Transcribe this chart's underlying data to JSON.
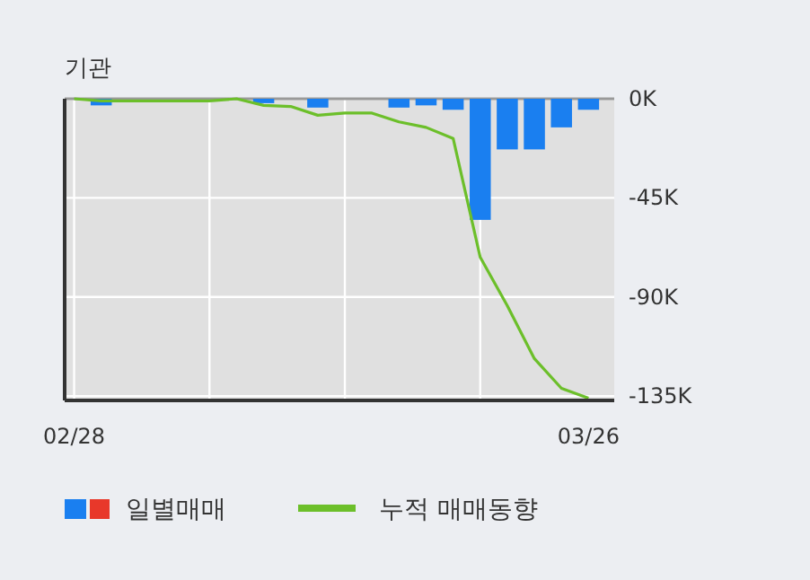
{
  "chart_data": {
    "type": "bar",
    "title": "기관",
    "categories": [
      "02/28",
      null,
      null,
      null,
      null,
      null,
      null,
      null,
      null,
      null,
      null,
      null,
      null,
      null,
      null,
      null,
      null,
      null,
      null,
      "03/26"
    ],
    "series": [
      {
        "name": "일별매매",
        "color": "#1a7ff0",
        "values": [
          0,
          -3000,
          0,
          0,
          0,
          0,
          0,
          -2000,
          0,
          -4000,
          0,
          0,
          -4000,
          -3000,
          -5000,
          -55000,
          -23000,
          -23000,
          -13000,
          -5000
        ]
      },
      {
        "name": "누적 매매동향",
        "type": "line",
        "color": "#6cbf2a",
        "values": [
          0,
          -1000,
          -1000,
          -1000,
          -1000,
          -1000,
          0,
          -3000,
          -3500,
          -7500,
          -6500,
          -6500,
          -10500,
          -13000,
          -18000,
          -72000,
          -94000,
          -118000,
          -131500,
          -136000
        ]
      }
    ],
    "ylim": [
      -137000,
      0
    ],
    "yticks": [
      {
        "value": 0,
        "label": "0K"
      },
      {
        "value": -45000,
        "label": "-45K"
      },
      {
        "value": -90000,
        "label": "-90K"
      },
      {
        "value": -135000,
        "label": "-135K"
      }
    ],
    "grid": true,
    "legend": "bottom"
  }
}
